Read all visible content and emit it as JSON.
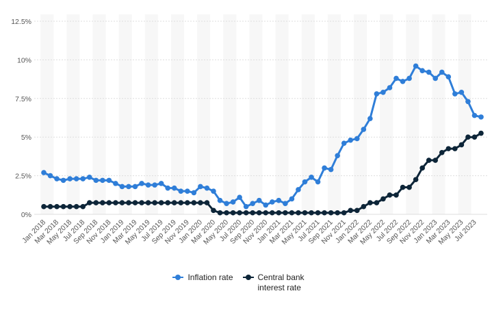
{
  "chart_data": {
    "type": "line",
    "categories": [
      "Jan 2018",
      null,
      "Mar 2018",
      null,
      "May 2018",
      null,
      "Jul 2018",
      null,
      "Sep 2018",
      null,
      "Nov 2018",
      null,
      "Jan 2019",
      null,
      "Mar 2019",
      null,
      "May 2019",
      null,
      "Jul 2019",
      null,
      "Sep 2019",
      null,
      "Nov 2019",
      null,
      "Jan 2020",
      null,
      "Mar 2020",
      null,
      "May 2020",
      null,
      "Jul 2020",
      null,
      "Sep 2020",
      null,
      "Nov 2020",
      null,
      "Jan 2021",
      null,
      "Mar 2021",
      null,
      "May 2021",
      null,
      "Jul 2021",
      null,
      "Sep 2021",
      null,
      "Nov 2021",
      null,
      "Jan 2022",
      null,
      "Mar 2022",
      null,
      "May 2022",
      null,
      "Jul 2022",
      null,
      "Sep 2022",
      null,
      "Nov 2022",
      null,
      "Jan 2023",
      null,
      "Mar 2023",
      null,
      "May 2023",
      null,
      "Jul 2023",
      null
    ],
    "series": [
      {
        "name": "Inflation rate",
        "color": "#2f7ed8",
        "values": [
          2.7,
          2.5,
          2.3,
          2.2,
          2.3,
          2.3,
          2.3,
          2.4,
          2.2,
          2.2,
          2.2,
          2.0,
          1.8,
          1.8,
          1.8,
          2.0,
          1.9,
          1.9,
          2.0,
          1.7,
          1.7,
          1.5,
          1.5,
          1.4,
          1.8,
          1.7,
          1.5,
          0.9,
          0.7,
          0.8,
          1.1,
          0.5,
          0.7,
          0.9,
          0.6,
          0.8,
          0.9,
          0.7,
          1.0,
          1.6,
          2.1,
          2.4,
          2.1,
          3.0,
          2.9,
          3.8,
          4.6,
          4.8,
          4.9,
          5.5,
          6.2,
          7.8,
          7.9,
          8.2,
          8.8,
          8.6,
          8.8,
          9.6,
          9.3,
          9.2,
          8.8,
          9.2,
          8.9,
          7.8,
          7.9,
          7.3,
          6.4,
          6.3
        ]
      },
      {
        "name": "Central bank interest rate",
        "color": "#0d2538",
        "values": [
          0.5,
          0.5,
          0.5,
          0.5,
          0.5,
          0.5,
          0.5,
          0.75,
          0.75,
          0.75,
          0.75,
          0.75,
          0.75,
          0.75,
          0.75,
          0.75,
          0.75,
          0.75,
          0.75,
          0.75,
          0.75,
          0.75,
          0.75,
          0.75,
          0.75,
          0.75,
          0.25,
          0.1,
          0.1,
          0.1,
          0.1,
          0.1,
          0.1,
          0.1,
          0.1,
          0.1,
          0.1,
          0.1,
          0.1,
          0.1,
          0.1,
          0.1,
          0.1,
          0.1,
          0.1,
          0.1,
          0.1,
          0.25,
          0.25,
          0.5,
          0.75,
          0.75,
          1.0,
          1.25,
          1.25,
          1.75,
          1.75,
          2.25,
          3.0,
          3.5,
          3.5,
          4.0,
          4.25,
          4.25,
          4.5,
          5.0,
          5.0,
          5.25
        ]
      }
    ],
    "ylim": [
      0,
      12.5
    ],
    "yticks": [
      {
        "value": 0,
        "label": "0%"
      },
      {
        "value": 2.5,
        "label": "2.5%"
      },
      {
        "value": 5,
        "label": "5%"
      },
      {
        "value": 7.5,
        "label": "7.5%"
      },
      {
        "value": 10,
        "label": "10%"
      },
      {
        "value": 12.5,
        "label": "12.5%"
      }
    ],
    "grid": true,
    "legend": "bottom"
  }
}
